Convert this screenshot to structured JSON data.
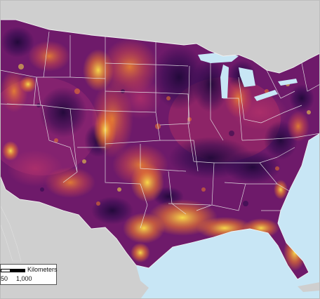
{
  "colors": {
    "ocean": "#c8e6f5",
    "land_neighbor": "#cfcfcf",
    "border": "#e9e9e9",
    "low": "#2a0a4a",
    "mid_low": "#7a1a6e",
    "mid": "#c8385a",
    "mid_high": "#f07b2a",
    "high": "#fde24a"
  },
  "scale_bar": {
    "unit_label": "Kilometers",
    "tick_mid": "50",
    "tick_end": "1,000"
  }
}
